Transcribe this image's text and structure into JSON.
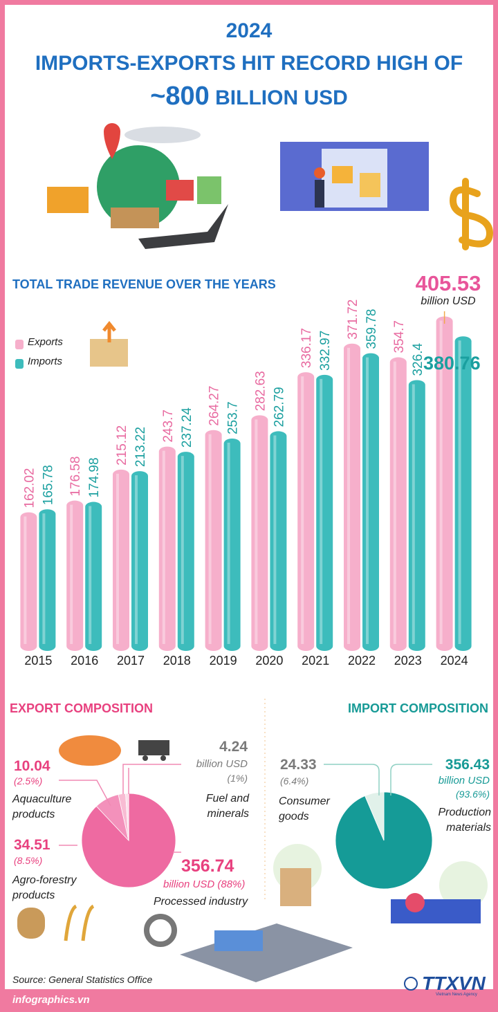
{
  "header": {
    "year": "2024",
    "title": "IMPORTS-EXPORTS HIT RECORD HIGH OF",
    "highlight": "~800",
    "title_end": "BILLION USD"
  },
  "chart_data": [
    {
      "type": "bar",
      "title": "TOTAL TRADE REVENUE OVER THE YEARS",
      "unit": "billion USD",
      "categories": [
        "2015",
        "2016",
        "2017",
        "2018",
        "2019",
        "2020",
        "2021",
        "2022",
        "2023",
        "2024"
      ],
      "series": [
        {
          "name": "Exports",
          "color": "#f6afcb",
          "label_color": "#e86aa0",
          "values": [
            162.02,
            176.58,
            215.12,
            243.7,
            264.27,
            282.63,
            336.17,
            371.72,
            354.7,
            405.53
          ]
        },
        {
          "name": "Imports",
          "color": "#3dbcbc",
          "label_color": "#1a9f9f",
          "values": [
            165.78,
            174.98,
            213.22,
            237.24,
            253.7,
            262.79,
            332.97,
            359.78,
            326.4,
            380.76
          ]
        }
      ],
      "ylim": [
        0,
        430
      ]
    },
    {
      "type": "pie",
      "title": "EXPORT COMPOSITION",
      "unit": "billion USD",
      "categories": [
        "Processed industry",
        "Agro-forestry products",
        "Aquaculture products",
        "Fuel and minerals"
      ],
      "values": [
        356.74,
        34.51,
        10.04,
        4.24
      ],
      "percent_labels": [
        "(88%)",
        "(8.5%)",
        "(2.5%)",
        "(1%)"
      ],
      "colors": [
        "#ee6aa1",
        "#f391bb",
        "#f8bcd3",
        "#fbdce8"
      ]
    },
    {
      "type": "pie",
      "title": "IMPORT COMPOSITION",
      "unit": "billion USD",
      "categories": [
        "Production materials",
        "Consumer goods"
      ],
      "values": [
        356.43,
        24.33
      ],
      "percent_labels": [
        "(93.6%)",
        "(6.4%)"
      ],
      "colors": [
        "#159b97",
        "#e1f1ea"
      ]
    }
  ],
  "source": "Source: General Statistics Office",
  "footer": "infographics.vn",
  "logo": "TTXVN",
  "logo_caption": "Vietnam News Agency"
}
